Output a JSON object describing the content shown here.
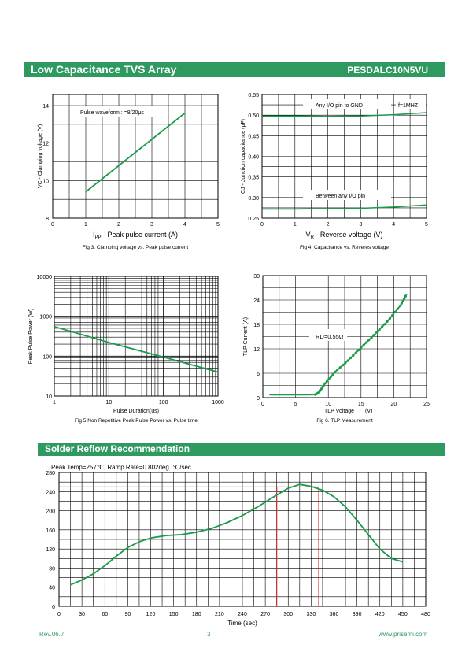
{
  "header": {
    "title": "Low Capacitance TVS Array",
    "part_number": "PESDALC10N5VU"
  },
  "section_reflow": {
    "title": "Solder Reflow Recommendation"
  },
  "footer": {
    "rev": "Rev.06.7",
    "page": "3",
    "url": "www.prisemi.com"
  },
  "colors": {
    "brand": "#2e9a5f",
    "curve": "#1a9a4a",
    "marker": "#c0282e"
  },
  "chart_data": [
    {
      "id": "fig3",
      "type": "line",
      "caption": "Fig 3. Clamping voltage vs. Peak pulse current",
      "xlabel": "IPP - Peak pulse current (A)",
      "xlabel_main": "I",
      "xlabel_sub": "PP",
      "xlabel_rest": " - Peak pulse current (A)",
      "ylabel": "VC - Clamping voltage (V)",
      "xlim": [
        0,
        5
      ],
      "ylim": [
        8,
        14
      ],
      "xticks": [
        "0",
        "1",
        "2",
        "3",
        "4",
        "5"
      ],
      "yticks": [
        "8",
        "10",
        "12",
        "14"
      ],
      "annotation": "Pulse waveform : =8/20μs",
      "series": [
        {
          "x": [
            1,
            4
          ],
          "y": [
            9.4,
            13.6
          ]
        }
      ]
    },
    {
      "id": "fig4",
      "type": "line",
      "caption": "Fig 4. Capacitance vs. Reveres voltage",
      "xlabel": "VR - Reverse voltage (V)",
      "xlabel_main": "V",
      "xlabel_sub": "R",
      "xlabel_rest": " - Reverse voltage (V)",
      "ylabel": "CJ - Junction capacitance (pF)",
      "xlim": [
        0,
        5
      ],
      "ylim": [
        0.25,
        0.55
      ],
      "xticks": [
        "0",
        "1",
        "2",
        "3",
        "4",
        "5"
      ],
      "yticks": [
        "0.25",
        "0.30",
        "0.35",
        "0.40",
        "0.45",
        "0.50",
        "0.55"
      ],
      "annotations": [
        "Any I/O pin to GND",
        "f=1MHZ",
        "Between any I/O pin"
      ],
      "series": [
        {
          "name": "Any I/O pin to GND",
          "x": [
            0,
            1,
            2,
            3,
            4,
            5
          ],
          "y": [
            0.498,
            0.498,
            0.497,
            0.498,
            0.501,
            0.506
          ]
        },
        {
          "name": "Between any I/O pin",
          "x": [
            0,
            1,
            2,
            3,
            4,
            5
          ],
          "y": [
            0.272,
            0.272,
            0.273,
            0.274,
            0.277,
            0.282
          ]
        }
      ]
    },
    {
      "id": "fig5",
      "type": "line",
      "caption": "Fig 5.Non Repetitive Peak Pulse Power vs. Pulse time",
      "xlabel": "Pulse Duration(us)",
      "ylabel": "Peak Pulse Power (W)",
      "xscale": "log",
      "yscale": "log",
      "xlim": [
        1,
        1000
      ],
      "ylim": [
        10,
        10000
      ],
      "xticks": [
        "1",
        "10",
        "100",
        "1000"
      ],
      "yticks": [
        "10",
        "100",
        "1000",
        "10000"
      ],
      "series": [
        {
          "x": [
            1,
            10,
            100,
            1000
          ],
          "y": [
            550,
            220,
            95,
            40
          ]
        }
      ]
    },
    {
      "id": "fig6",
      "type": "line",
      "caption": "Fig 6. TLP Measurement",
      "xlabel": "TLP Voltage (V)",
      "xlabel_left": "TLP Voltage",
      "xlabel_right": "(V)",
      "ylabel": "TLP Current (A)",
      "xlim": [
        0,
        25
      ],
      "ylim": [
        0,
        30
      ],
      "xticks": [
        "0",
        "5",
        "10",
        "15",
        "20",
        "25"
      ],
      "yticks": [
        "0",
        "6",
        "12",
        "18",
        "24",
        "30"
      ],
      "annotation": "RD=0.55Ω",
      "series": [
        {
          "x": [
            1,
            4,
            7,
            8,
            8.6,
            9.5,
            11,
            13,
            15,
            17,
            19,
            21,
            22
          ],
          "y": [
            0.7,
            0.7,
            0.7,
            0.75,
            1.3,
            3.5,
            6.3,
            9.1,
            12.3,
            15.4,
            18.7,
            22.6,
            25.5
          ]
        }
      ]
    },
    {
      "id": "reflow",
      "type": "line",
      "title": "Peak Temp=257℃, Ramp Rate=0.802deg. ℃/sec",
      "xlabel": "Time (sec)",
      "xlim": [
        0,
        480
      ],
      "ylim": [
        0,
        280
      ],
      "xticks": [
        "0",
        "30",
        "60",
        "90",
        "120",
        "150",
        "180",
        "210",
        "240",
        "270",
        "300",
        "330",
        "360",
        "390",
        "420",
        "450",
        "480"
      ],
      "yticks": [
        "0",
        "40",
        "80",
        "120",
        "160",
        "200",
        "240",
        "280"
      ],
      "series": [
        {
          "x": [
            15,
            30,
            45,
            60,
            75,
            90,
            105,
            120,
            140,
            160,
            180,
            200,
            220,
            240,
            260,
            280,
            300,
            315,
            330,
            345,
            360,
            375,
            390,
            405,
            420,
            435,
            450
          ],
          "y": [
            45,
            55,
            68,
            85,
            105,
            123,
            135,
            143,
            148,
            150,
            155,
            163,
            175,
            190,
            208,
            228,
            247,
            255,
            251,
            243,
            229,
            208,
            180,
            150,
            120,
            100,
            93
          ]
        }
      ],
      "markers": {
        "x": [
          285,
          340
        ],
        "y": [
          250,
          250
        ]
      }
    }
  ]
}
